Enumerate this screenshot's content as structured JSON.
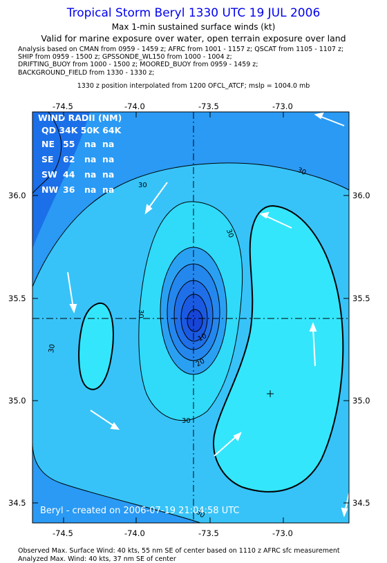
{
  "header": {
    "title": "Tropical Storm Beryl 1330 UTC 19 JUL 2006",
    "subtitle1": "Max 1-min sustained surface winds (kt)",
    "subtitle2": "Valid for marine exposure over water, open terrain exposure over land",
    "analysis_lines": [
      "Analysis based on  CMAN from 0959 - 1459 z;  AFRC from 1001 - 1157 z;  QSCAT from 1105 - 1107 z;",
      "SHIP from 0959 - 1500 z;  GPSSONDE_WL150 from 1000 - 1004 z;",
      "DRIFTING_BUOY from 1000 - 1500 z;  MOORED_BUOY from 0959 - 1459 z;",
      "BACKGROUND_FIELD from 1330 - 1330 z;"
    ],
    "position_line": "1330 z position interpolated from 1200 OFCL_ATCF; mslp = 1004.0 mb"
  },
  "map": {
    "x_ticks": [
      "-74.5",
      "-74.0",
      "-73.5",
      "-73.0"
    ],
    "y_ticks": [
      "36.0",
      "35.5",
      "35.0",
      "34.5"
    ],
    "contour_labels": [
      "30",
      "30",
      "30",
      "30",
      "30",
      "30",
      "30",
      "20",
      "10"
    ],
    "created_label": "Beryl - created on 2006-07-19 21:04:58 UTC",
    "colors": {
      "outer": "#1b6fe8",
      "mid": "#2ca0f5",
      "light": "#38c7f9",
      "lighter": "#33e0fb",
      "core": "#1a4fe0"
    }
  },
  "wind_radii": {
    "title": "WIND RADII (NM)",
    "header": "QD 34K 50K 64K",
    "rows": [
      {
        "qd": "NE",
        "r34": "55",
        "r50": "na",
        "r64": "na"
      },
      {
        "qd": "SE",
        "r34": "62",
        "r50": "na",
        "r64": "na"
      },
      {
        "qd": "SW",
        "r34": "44",
        "r50": "na",
        "r64": "na"
      },
      {
        "qd": "NW",
        "r34": "36",
        "r50": "na",
        "r64": "na"
      }
    ]
  },
  "footer": {
    "observed": "Observed Max. Surface Wind: 40 kts, 55 nm SE of center based on 1110 z AFRC sfc measurement",
    "analyzed": "Analyzed Max. Wind: 40 kts, 37 nm SE of center"
  }
}
